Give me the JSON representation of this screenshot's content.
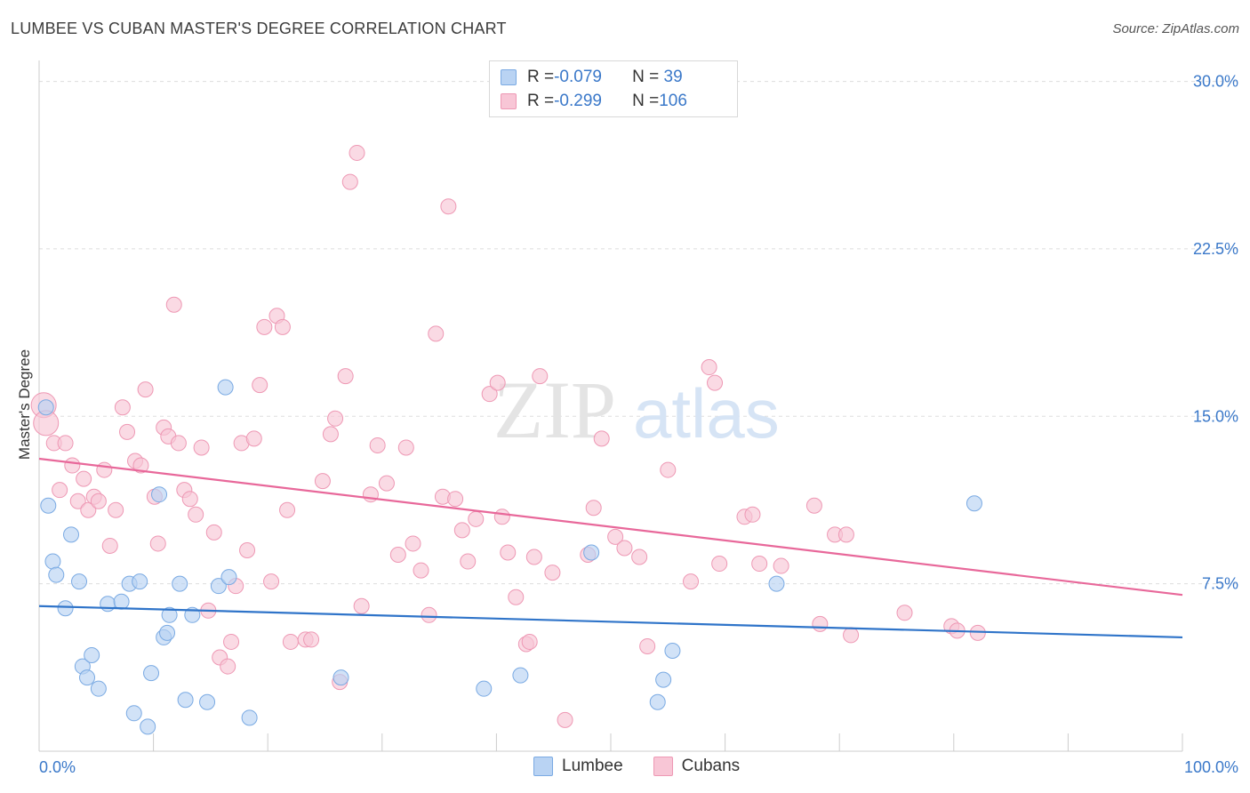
{
  "title": "LUMBEE VS CUBAN MASTER'S DEGREE CORRELATION CHART",
  "source": "Source: ZipAtlas.com",
  "watermark": {
    "part1": "ZIP",
    "part2": "atlas"
  },
  "legend": {
    "rows": [
      {
        "r_label": "R = ",
        "r_value": "-0.079",
        "n_label": "N = ",
        "n_value": " 39"
      },
      {
        "r_label": "R = ",
        "r_value": "-0.299",
        "n_label": "N = ",
        "n_value": "106"
      }
    ],
    "series": [
      "Lumbee",
      "Cubans"
    ]
  },
  "colors": {
    "lumbee_fill": "#b9d3f3",
    "lumbee_stroke": "#7aaae3",
    "lumbee_line": "#2f74c9",
    "cubans_fill": "#f8c6d6",
    "cubans_stroke": "#ee98b4",
    "cubans_line": "#e8689a",
    "tick_label": "#3a78c9",
    "grid": "#dddddd"
  },
  "chart_data": {
    "type": "scatter",
    "title": "LUMBEE VS CUBAN MASTER'S DEGREE CORRELATION CHART",
    "xlabel": "",
    "ylabel": "Master's Degree",
    "xlim": [
      0,
      100
    ],
    "ylim": [
      0,
      30.7
    ],
    "x_tick_labels": [
      "0.0%",
      "100.0%"
    ],
    "y_ticks": [
      7.5,
      15.0,
      22.5,
      30.0
    ],
    "y_tick_labels": [
      "7.5%",
      "15.0%",
      "22.5%",
      "30.0%"
    ],
    "grid": "horizontal dashed",
    "legend_position": "bottom-center",
    "series": [
      {
        "name": "Lumbee",
        "R": -0.079,
        "N": 39,
        "trend": {
          "x": [
            0,
            100
          ],
          "y": [
            6.5,
            5.1
          ]
        },
        "points": [
          [
            0.6,
            15.4
          ],
          [
            0.8,
            11.0
          ],
          [
            1.2,
            8.5
          ],
          [
            1.5,
            7.9
          ],
          [
            2.3,
            6.4
          ],
          [
            2.8,
            9.7
          ],
          [
            3.5,
            7.6
          ],
          [
            3.8,
            3.8
          ],
          [
            4.2,
            3.3
          ],
          [
            4.6,
            4.3
          ],
          [
            5.2,
            2.8
          ],
          [
            6.0,
            6.6
          ],
          [
            7.2,
            6.7
          ],
          [
            7.9,
            7.5
          ],
          [
            8.3,
            1.7
          ],
          [
            8.8,
            7.6
          ],
          [
            9.5,
            1.1
          ],
          [
            9.8,
            3.5
          ],
          [
            10.5,
            11.5
          ],
          [
            10.9,
            5.1
          ],
          [
            11.2,
            5.3
          ],
          [
            11.4,
            6.1
          ],
          [
            12.3,
            7.5
          ],
          [
            12.8,
            2.3
          ],
          [
            13.4,
            6.1
          ],
          [
            14.7,
            2.2
          ],
          [
            15.7,
            7.4
          ],
          [
            16.3,
            16.3
          ],
          [
            16.6,
            7.8
          ],
          [
            18.4,
            1.5
          ],
          [
            26.4,
            3.3
          ],
          [
            38.9,
            2.8
          ],
          [
            42.1,
            3.4
          ],
          [
            48.3,
            8.9
          ],
          [
            54.1,
            2.2
          ],
          [
            54.6,
            3.2
          ],
          [
            55.4,
            4.5
          ],
          [
            64.5,
            7.5
          ],
          [
            81.8,
            11.1
          ]
        ]
      },
      {
        "name": "Cubans",
        "R": -0.299,
        "N": 106,
        "trend": {
          "x": [
            0,
            100
          ],
          "y": [
            13.1,
            7.0
          ]
        },
        "points": [
          [
            0.4,
            15.5
          ],
          [
            0.6,
            14.7
          ],
          [
            1.3,
            13.8
          ],
          [
            1.8,
            11.7
          ],
          [
            2.3,
            13.8
          ],
          [
            2.9,
            12.8
          ],
          [
            3.4,
            11.2
          ],
          [
            3.9,
            12.2
          ],
          [
            4.3,
            10.8
          ],
          [
            4.8,
            11.4
          ],
          [
            5.2,
            11.2
          ],
          [
            5.7,
            12.6
          ],
          [
            6.2,
            9.2
          ],
          [
            6.7,
            10.8
          ],
          [
            7.3,
            15.4
          ],
          [
            7.7,
            14.3
          ],
          [
            8.4,
            13.0
          ],
          [
            8.9,
            12.8
          ],
          [
            9.3,
            16.2
          ],
          [
            10.1,
            11.4
          ],
          [
            10.4,
            9.3
          ],
          [
            10.9,
            14.5
          ],
          [
            11.3,
            14.1
          ],
          [
            11.8,
            20.0
          ],
          [
            12.2,
            13.8
          ],
          [
            12.7,
            11.7
          ],
          [
            13.2,
            11.3
          ],
          [
            13.7,
            10.6
          ],
          [
            14.2,
            13.6
          ],
          [
            14.8,
            6.3
          ],
          [
            15.3,
            9.8
          ],
          [
            15.8,
            4.2
          ],
          [
            16.5,
            3.8
          ],
          [
            16.8,
            4.9
          ],
          [
            17.2,
            7.4
          ],
          [
            17.7,
            13.8
          ],
          [
            18.2,
            9.0
          ],
          [
            18.8,
            14.0
          ],
          [
            19.3,
            16.4
          ],
          [
            19.7,
            19.0
          ],
          [
            20.3,
            7.6
          ],
          [
            20.8,
            19.5
          ],
          [
            21.3,
            19.0
          ],
          [
            21.7,
            10.8
          ],
          [
            22.0,
            4.9
          ],
          [
            23.3,
            5.0
          ],
          [
            23.8,
            5.0
          ],
          [
            24.8,
            12.1
          ],
          [
            25.5,
            14.2
          ],
          [
            25.9,
            14.9
          ],
          [
            26.3,
            3.1
          ],
          [
            26.8,
            16.8
          ],
          [
            27.2,
            25.5
          ],
          [
            27.8,
            26.8
          ],
          [
            28.2,
            6.5
          ],
          [
            29.0,
            11.5
          ],
          [
            29.6,
            13.7
          ],
          [
            30.4,
            12.0
          ],
          [
            31.4,
            8.8
          ],
          [
            32.1,
            13.6
          ],
          [
            32.7,
            9.3
          ],
          [
            33.4,
            8.1
          ],
          [
            34.1,
            6.1
          ],
          [
            34.7,
            18.7
          ],
          [
            35.3,
            11.4
          ],
          [
            35.8,
            24.4
          ],
          [
            36.4,
            11.3
          ],
          [
            37.0,
            9.9
          ],
          [
            37.5,
            8.5
          ],
          [
            38.2,
            10.4
          ],
          [
            39.4,
            16.0
          ],
          [
            40.1,
            16.5
          ],
          [
            40.5,
            10.5
          ],
          [
            41.0,
            8.9
          ],
          [
            41.7,
            6.9
          ],
          [
            42.6,
            4.8
          ],
          [
            42.9,
            4.9
          ],
          [
            43.3,
            8.7
          ],
          [
            43.8,
            16.8
          ],
          [
            44.9,
            8.0
          ],
          [
            46.0,
            1.4
          ],
          [
            48.0,
            8.8
          ],
          [
            48.5,
            10.9
          ],
          [
            49.2,
            14.0
          ],
          [
            50.4,
            9.6
          ],
          [
            51.2,
            9.1
          ],
          [
            52.5,
            8.7
          ],
          [
            53.2,
            4.7
          ],
          [
            55.0,
            12.6
          ],
          [
            57.0,
            7.6
          ],
          [
            58.6,
            17.2
          ],
          [
            59.1,
            16.5
          ],
          [
            59.5,
            8.4
          ],
          [
            61.7,
            10.5
          ],
          [
            62.4,
            10.6
          ],
          [
            63.0,
            8.4
          ],
          [
            64.9,
            8.3
          ],
          [
            67.8,
            11.0
          ],
          [
            68.3,
            5.7
          ],
          [
            69.6,
            9.7
          ],
          [
            70.6,
            9.7
          ],
          [
            71.0,
            5.2
          ],
          [
            75.7,
            6.2
          ],
          [
            79.8,
            5.6
          ],
          [
            80.3,
            5.4
          ],
          [
            82.1,
            5.3
          ]
        ]
      }
    ]
  }
}
